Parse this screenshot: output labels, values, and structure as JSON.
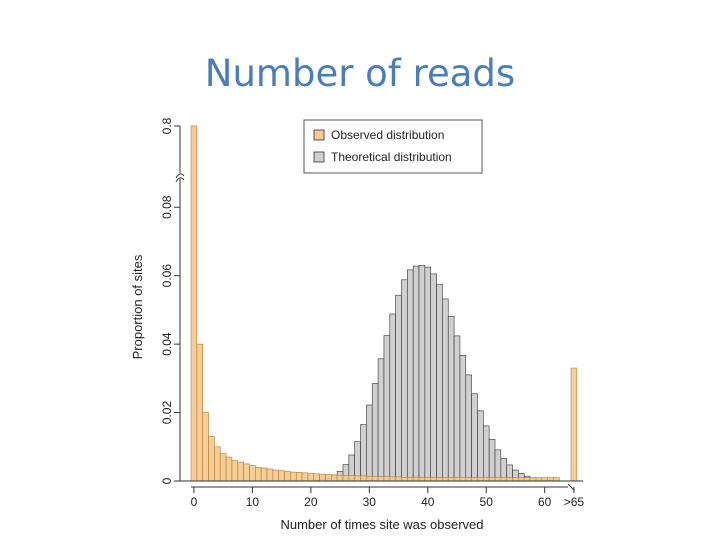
{
  "slide": {
    "title": "Number of reads"
  },
  "chart_data": {
    "type": "bar",
    "xlabel": "Number of times site was observed",
    "ylabel": "Proportion of sites",
    "y_break": {
      "lower_range": [
        0,
        0.09
      ],
      "upper_tick": 0.8
    },
    "y_ticks": [
      "0",
      "0.02",
      "0.04",
      "0.06",
      "0.08",
      "0.8"
    ],
    "x_ticks": [
      "0",
      "10",
      "20",
      "30",
      "40",
      "50",
      "60",
      ">65"
    ],
    "legend": {
      "position": "top-right",
      "entries": [
        "Observed distribution",
        "Theoretical distribution"
      ]
    },
    "colors": {
      "observed": "#f6c98d",
      "theoretical": "#d0d0d0",
      "outline": "#333333"
    },
    "x": [
      0,
      1,
      2,
      3,
      4,
      5,
      6,
      7,
      8,
      9,
      10,
      11,
      12,
      13,
      14,
      15,
      16,
      17,
      18,
      19,
      20,
      21,
      22,
      23,
      24,
      25,
      26,
      27,
      28,
      29,
      30,
      31,
      32,
      33,
      34,
      35,
      36,
      37,
      38,
      39,
      40,
      41,
      42,
      43,
      44,
      45,
      46,
      47,
      48,
      49,
      50,
      51,
      52,
      53,
      54,
      55,
      56,
      57,
      58,
      59,
      60,
      61,
      62,
      63,
      64,
      65
    ],
    "series": [
      {
        "name": "Observed distribution",
        "values": [
          0.8,
          0.04,
          0.02,
          0.013,
          0.01,
          0.008,
          0.007,
          0.006,
          0.0055,
          0.005,
          0.0045,
          0.004,
          0.0038,
          0.0035,
          0.0032,
          0.003,
          0.0028,
          0.0026,
          0.0025,
          0.0024,
          0.0022,
          0.0021,
          0.002,
          0.0019,
          0.0018,
          0.0017,
          0.0016,
          0.0016,
          0.0015,
          0.0015,
          0.0014,
          0.0014,
          0.0013,
          0.0013,
          0.0012,
          0.0012,
          0.0011,
          0.0011,
          0.0011,
          0.001,
          0.001,
          0.001,
          0.001,
          0.001,
          0.001,
          0.001,
          0.001,
          0.001,
          0.001,
          0.001,
          0.001,
          0.001,
          0.001,
          0.001,
          0.001,
          0.001,
          0.001,
          0.001,
          0.001,
          0.001,
          0.001,
          0.001,
          0.001,
          0,
          0,
          0.033
        ]
      },
      {
        "name": "Theoretical distribution",
        "values": [
          0,
          0,
          0,
          0,
          0,
          0,
          0,
          0,
          0,
          0,
          0,
          0,
          0,
          0,
          0,
          0,
          0,
          0,
          0,
          0,
          0,
          0.0002,
          0.0004,
          0.0008,
          0.0015,
          0.0028,
          0.0048,
          0.0076,
          0.0115,
          0.0165,
          0.0222,
          0.0285,
          0.0357,
          0.0425,
          0.0488,
          0.0543,
          0.0588,
          0.0617,
          0.0628,
          0.063,
          0.0625,
          0.0605,
          0.0575,
          0.0532,
          0.0481,
          0.0424,
          0.0367,
          0.031,
          0.0255,
          0.0205,
          0.0161,
          0.0122,
          0.0091,
          0.0066,
          0.0047,
          0.0032,
          0.0022,
          0.0014,
          0.0009,
          0.0005,
          0.0003,
          0.0002,
          0.0001,
          0,
          0,
          0
        ]
      }
    ]
  }
}
